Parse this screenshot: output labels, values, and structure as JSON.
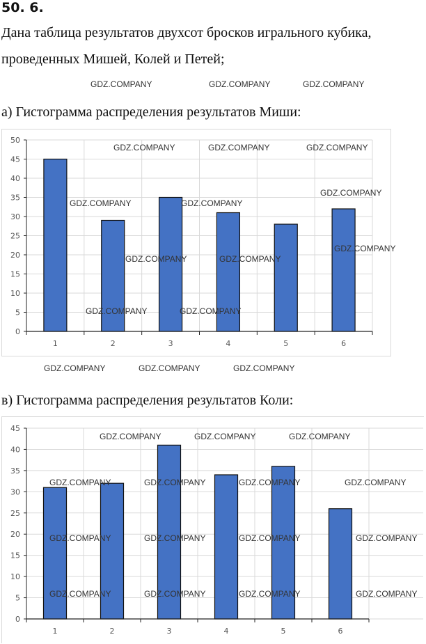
{
  "problem_number": "50. 6.",
  "intro_line1": "Дана таблица результатов двухсот бросков игрального кубика,",
  "intro_line2": "проведенных Мишей, Колей и Петей;",
  "watermark": "GDZ.COMPANY",
  "colors": {
    "bar": "#4472c4",
    "bar_border": "#111111",
    "grid": "#d9d9d9"
  },
  "chart_data": [
    {
      "type": "bar",
      "title": "а) Гистограмма распределения результатов Миши:",
      "categories": [
        "1",
        "2",
        "3",
        "4",
        "5",
        "6"
      ],
      "values": [
        45,
        29,
        35,
        31,
        28,
        32
      ],
      "yticks": [
        "0",
        "5",
        "10",
        "15",
        "20",
        "25",
        "30",
        "35",
        "40",
        "45",
        "50"
      ],
      "ylim": [
        0,
        50
      ],
      "xlabel": "",
      "ylabel": "",
      "grid": true
    },
    {
      "type": "bar",
      "title": "в) Гистограмма распределения результатов Коли:",
      "categories": [
        "1",
        "2",
        "3",
        "4",
        "5",
        "6"
      ],
      "values": [
        31,
        32,
        41,
        34,
        36,
        26
      ],
      "yticks": [
        "0",
        "5",
        "10",
        "15",
        "20",
        "25",
        "30",
        "35",
        "40",
        "45"
      ],
      "ylim": [
        0,
        45
      ],
      "xlabel": "",
      "ylabel": "",
      "grid": true
    }
  ]
}
